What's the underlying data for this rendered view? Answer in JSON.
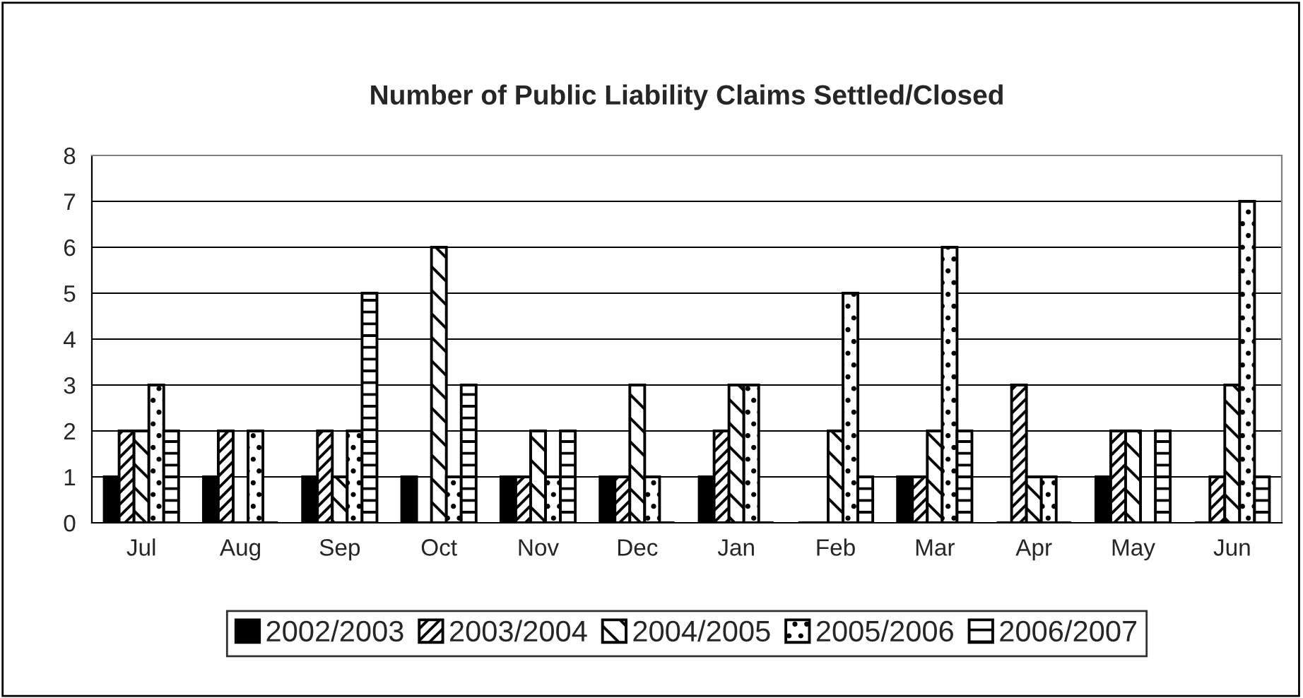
{
  "chart_data": {
    "type": "bar",
    "title": "Number of Public Liability Claims Settled/Closed",
    "categories": [
      "Jul",
      "Aug",
      "Sep",
      "Oct",
      "Nov",
      "Dec",
      "Jan",
      "Feb",
      "Mar",
      "Apr",
      "May",
      "Jun"
    ],
    "series": [
      {
        "name": "2002/2003",
        "color": "#000000",
        "values": [
          1,
          1,
          1,
          1,
          1,
          1,
          1,
          0,
          1,
          0,
          1,
          0
        ]
      },
      {
        "name": "2003/2004",
        "color": "#000000",
        "values": [
          2,
          2,
          2,
          0,
          1,
          1,
          2,
          0,
          1,
          3,
          2,
          1
        ]
      },
      {
        "name": "2004/2005",
        "color": "#000000",
        "values": [
          2,
          0,
          1,
          6,
          2,
          3,
          3,
          2,
          2,
          1,
          2,
          3
        ]
      },
      {
        "name": "2005/2006",
        "color": "#000000",
        "values": [
          3,
          2,
          2,
          1,
          1,
          1,
          3,
          5,
          6,
          1,
          0,
          7
        ]
      },
      {
        "name": "2006/2007",
        "color": "#000000",
        "values": [
          2,
          0,
          5,
          3,
          2,
          0,
          0,
          1,
          2,
          0,
          2,
          1
        ]
      }
    ],
    "ylim": [
      0,
      8
    ],
    "yticks": [
      0,
      1,
      2,
      3,
      4,
      5,
      6,
      7,
      8
    ],
    "grid": "y",
    "legend": "bottom"
  }
}
